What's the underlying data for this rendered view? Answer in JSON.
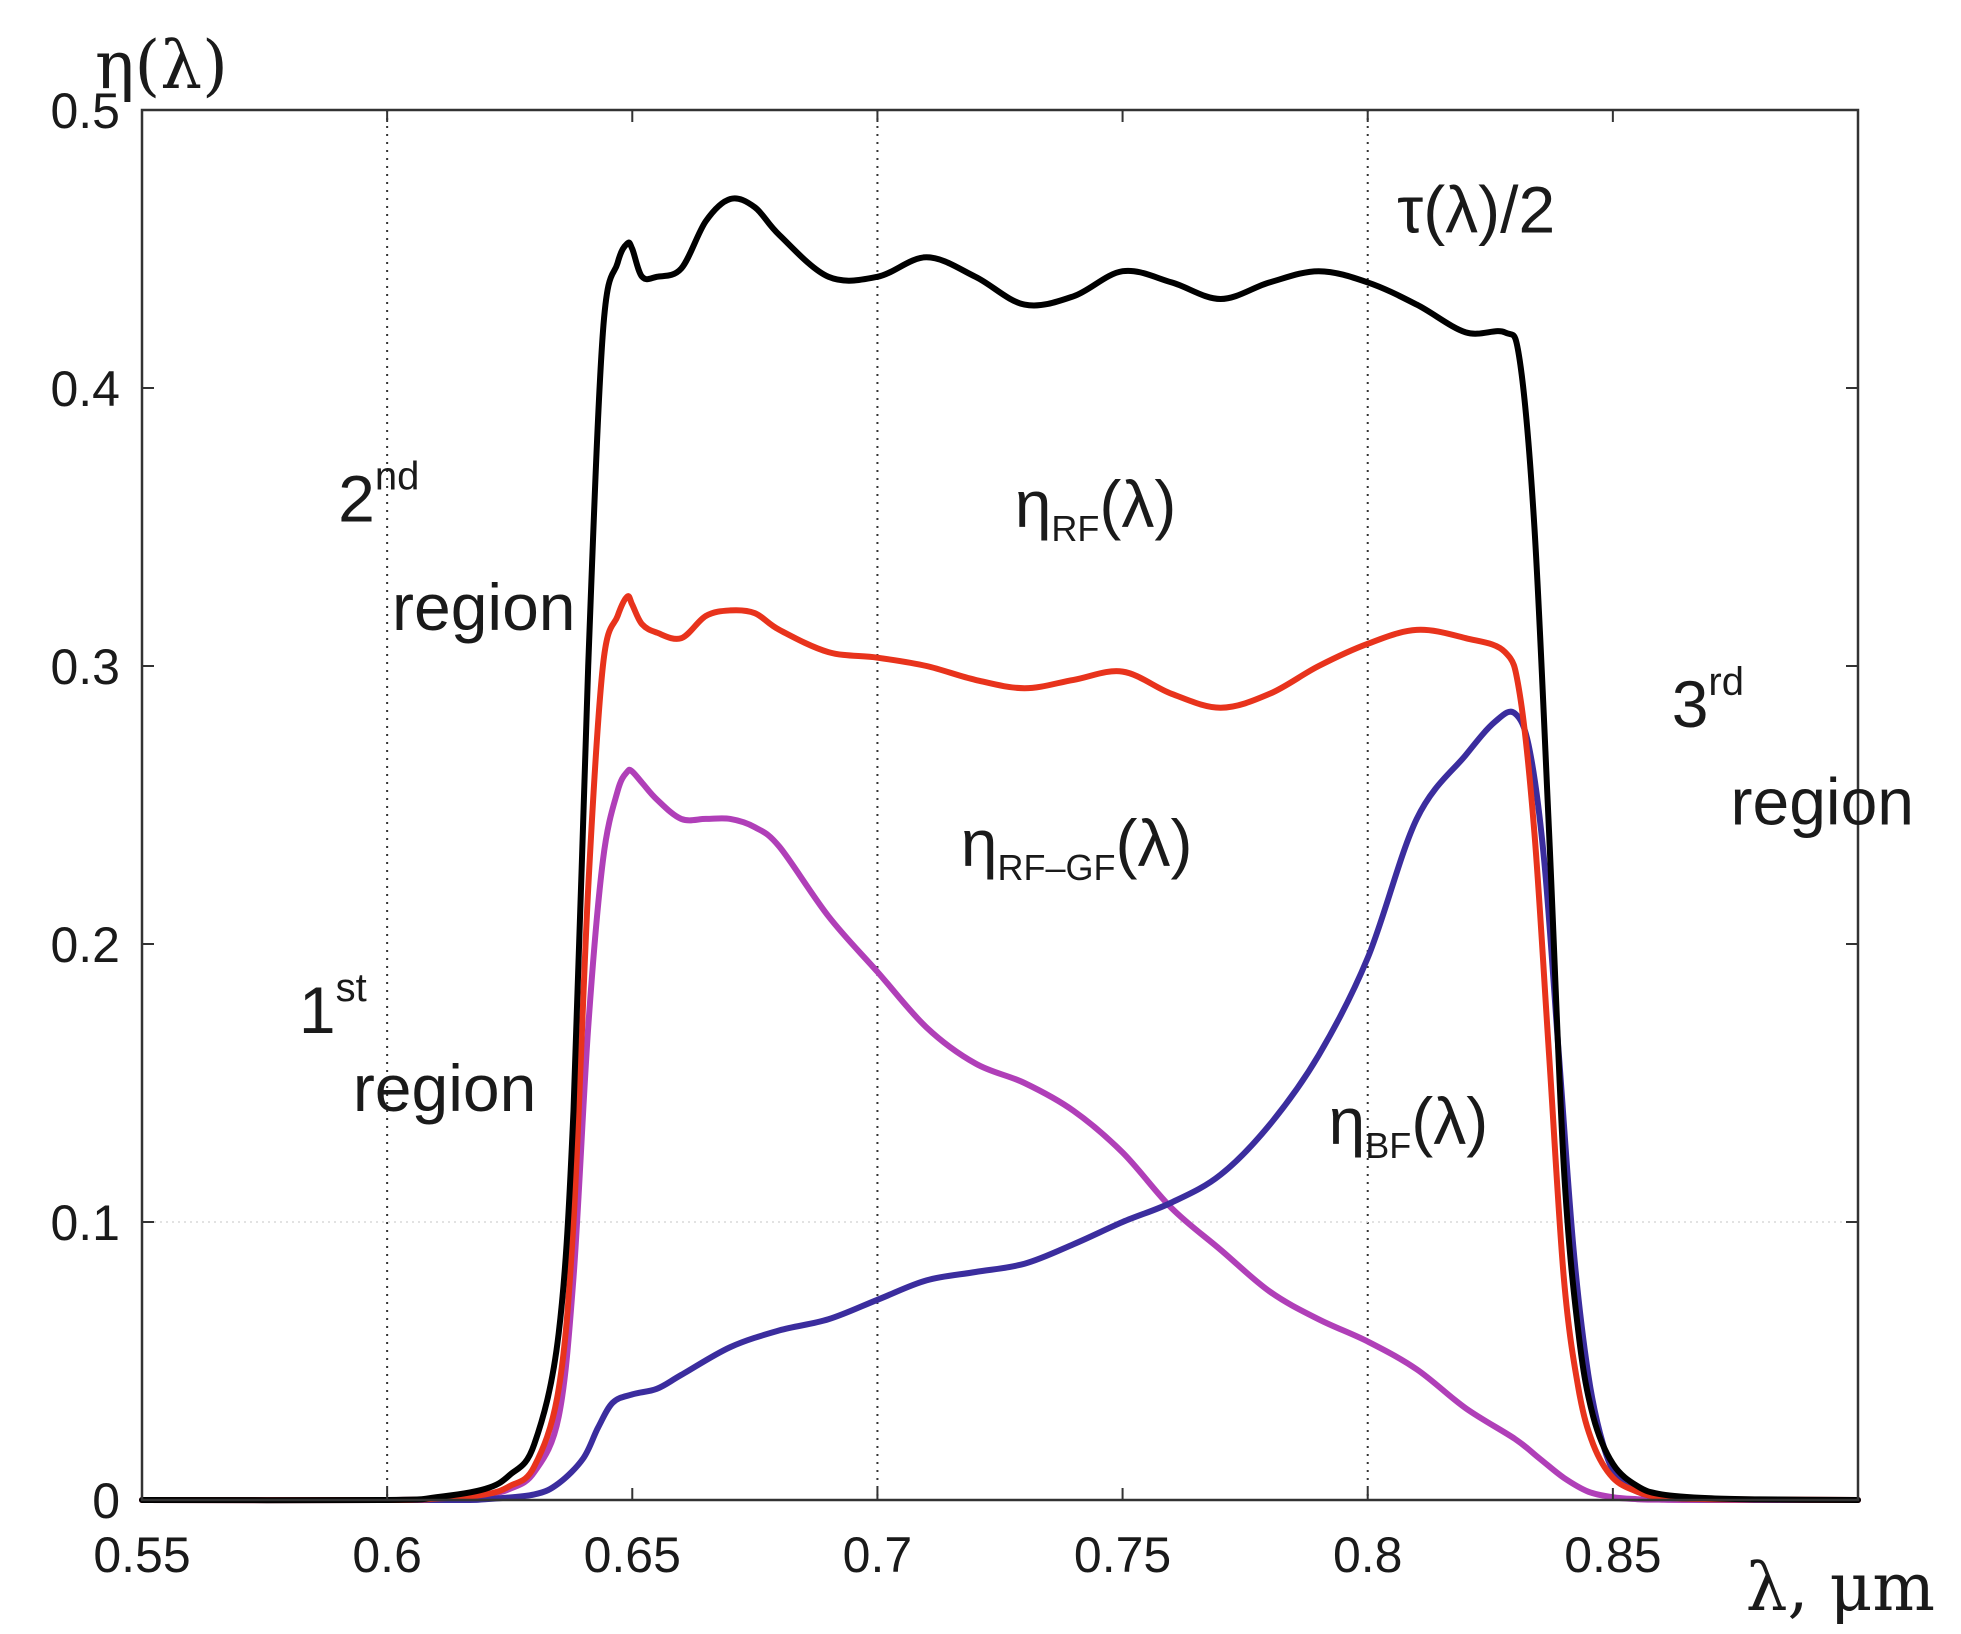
{
  "chart_data": {
    "type": "line",
    "ylabel": "η(λ)",
    "xlabel": "λ, μm",
    "xlim": [
      0.55,
      0.9
    ],
    "ylim": [
      0,
      0.5
    ],
    "x_ticks": [
      0.55,
      0.6,
      0.65,
      0.7,
      0.75,
      0.8,
      0.85
    ],
    "x_tick_labels": [
      "0.55",
      "0.6",
      "0.65",
      "0.7",
      "0.75",
      "0.8",
      "0.85"
    ],
    "y_ticks": [
      0,
      0.1,
      0.2,
      0.3,
      0.4,
      0.5
    ],
    "y_tick_labels": [
      "0",
      "0.1",
      "0.2",
      "0.3",
      "0.4",
      "0.5"
    ],
    "vlines": [
      0.6,
      0.7,
      0.8
    ],
    "hgrid": [
      0.1
    ],
    "series": [
      {
        "name": "τ(λ)/2",
        "color": "#000000",
        "x": [
          0.55,
          0.6,
          0.61,
          0.62,
          0.625,
          0.63,
          0.635,
          0.638,
          0.641,
          0.644,
          0.647,
          0.649,
          0.65,
          0.652,
          0.655,
          0.66,
          0.665,
          0.67,
          0.675,
          0.68,
          0.69,
          0.7,
          0.71,
          0.72,
          0.73,
          0.74,
          0.75,
          0.76,
          0.77,
          0.78,
          0.79,
          0.8,
          0.81,
          0.82,
          0.828,
          0.831,
          0.834,
          0.837,
          0.84,
          0.843,
          0.846,
          0.85,
          0.855,
          0.86,
          0.87,
          0.88,
          0.9
        ],
        "y": [
          0,
          0,
          0.001,
          0.004,
          0.009,
          0.02,
          0.06,
          0.14,
          0.3,
          0.42,
          0.445,
          0.452,
          0.45,
          0.44,
          0.44,
          0.443,
          0.46,
          0.468,
          0.465,
          0.455,
          0.44,
          0.44,
          0.447,
          0.44,
          0.43,
          0.433,
          0.442,
          0.438,
          0.432,
          0.438,
          0.442,
          0.438,
          0.43,
          0.42,
          0.42,
          0.41,
          0.35,
          0.24,
          0.12,
          0.06,
          0.03,
          0.013,
          0.005,
          0.002,
          0.0006,
          0.0002,
          0
        ]
      },
      {
        "name": "η_RF(λ)",
        "color": "#e8331c",
        "x": [
          0.55,
          0.6,
          0.61,
          0.62,
          0.625,
          0.63,
          0.635,
          0.638,
          0.641,
          0.644,
          0.647,
          0.649,
          0.65,
          0.652,
          0.655,
          0.66,
          0.665,
          0.67,
          0.675,
          0.68,
          0.69,
          0.7,
          0.71,
          0.72,
          0.73,
          0.74,
          0.75,
          0.76,
          0.77,
          0.78,
          0.79,
          0.8,
          0.81,
          0.82,
          0.828,
          0.831,
          0.834,
          0.837,
          0.84,
          0.843,
          0.846,
          0.85,
          0.855,
          0.86,
          0.87,
          0.9
        ],
        "y": [
          0,
          0,
          0.0005,
          0.002,
          0.005,
          0.012,
          0.04,
          0.1,
          0.22,
          0.3,
          0.318,
          0.325,
          0.322,
          0.315,
          0.312,
          0.31,
          0.318,
          0.32,
          0.319,
          0.313,
          0.305,
          0.303,
          0.3,
          0.295,
          0.292,
          0.295,
          0.298,
          0.29,
          0.285,
          0.29,
          0.3,
          0.308,
          0.313,
          0.31,
          0.305,
          0.29,
          0.24,
          0.16,
          0.08,
          0.04,
          0.02,
          0.008,
          0.003,
          0.001,
          0.0003,
          0
        ]
      },
      {
        "name": "η_RF–GF(λ)",
        "color": "#b03fb8",
        "x": [
          0.55,
          0.6,
          0.61,
          0.62,
          0.625,
          0.63,
          0.635,
          0.638,
          0.641,
          0.644,
          0.647,
          0.649,
          0.65,
          0.652,
          0.655,
          0.66,
          0.665,
          0.67,
          0.675,
          0.68,
          0.69,
          0.7,
          0.71,
          0.72,
          0.73,
          0.74,
          0.75,
          0.76,
          0.77,
          0.78,
          0.79,
          0.8,
          0.81,
          0.82,
          0.83,
          0.835,
          0.84,
          0.845,
          0.85,
          0.855,
          0.86,
          0.87,
          0.9
        ],
        "y": [
          0,
          0,
          0.0005,
          0.002,
          0.004,
          0.01,
          0.03,
          0.08,
          0.17,
          0.23,
          0.255,
          0.262,
          0.262,
          0.258,
          0.252,
          0.245,
          0.245,
          0.245,
          0.242,
          0.235,
          0.21,
          0.19,
          0.17,
          0.157,
          0.15,
          0.14,
          0.125,
          0.105,
          0.09,
          0.075,
          0.065,
          0.057,
          0.047,
          0.033,
          0.022,
          0.015,
          0.008,
          0.003,
          0.001,
          0.0003,
          0.0001,
          0,
          0
        ]
      },
      {
        "name": "η_BF(λ)",
        "color": "#3b2d9e",
        "x": [
          0.55,
          0.61,
          0.62,
          0.63,
          0.635,
          0.64,
          0.643,
          0.646,
          0.65,
          0.655,
          0.66,
          0.67,
          0.68,
          0.69,
          0.7,
          0.71,
          0.72,
          0.73,
          0.74,
          0.75,
          0.76,
          0.77,
          0.78,
          0.79,
          0.8,
          0.81,
          0.82,
          0.826,
          0.83,
          0.833,
          0.836,
          0.839,
          0.842,
          0.845,
          0.848,
          0.851,
          0.855,
          0.86,
          0.87,
          0.9
        ],
        "y": [
          0,
          0,
          0.0003,
          0.002,
          0.006,
          0.015,
          0.026,
          0.035,
          0.038,
          0.04,
          0.045,
          0.055,
          0.061,
          0.065,
          0.072,
          0.079,
          0.082,
          0.085,
          0.092,
          0.1,
          0.107,
          0.117,
          0.135,
          0.16,
          0.195,
          0.245,
          0.268,
          0.28,
          0.283,
          0.27,
          0.23,
          0.16,
          0.09,
          0.045,
          0.02,
          0.008,
          0.003,
          0.001,
          0.0002,
          0
        ]
      }
    ],
    "annotations": [
      {
        "name": "tau-label",
        "text": "τ(λ)/2",
        "at": [
          0.806,
          0.456
        ]
      },
      {
        "name": "eta-rf-label",
        "text": "η",
        "sub": "RF",
        "tail": "(λ)",
        "at": [
          0.728,
          0.35
        ]
      },
      {
        "name": "eta-rfgf-label",
        "text": "η",
        "sub": "RF–GF",
        "tail": "(λ)",
        "at": [
          0.717,
          0.228
        ]
      },
      {
        "name": "eta-bf-label",
        "text": "η",
        "sub": "BF",
        "tail": "(λ)",
        "at": [
          0.792,
          0.128
        ]
      },
      {
        "name": "region-2-number",
        "text": "2",
        "sup": "nd",
        "at": [
          0.59,
          0.352
        ]
      },
      {
        "name": "region-2-word",
        "text": "region",
        "at": [
          0.601,
          0.313
        ]
      },
      {
        "name": "region-1-number",
        "text": "1",
        "sup": "st",
        "at": [
          0.582,
          0.168
        ]
      },
      {
        "name": "region-1-word",
        "text": "region",
        "at": [
          0.593,
          0.14
        ]
      },
      {
        "name": "region-3-number",
        "text": "3",
        "sup": "rd",
        "at": [
          0.862,
          0.278
        ]
      },
      {
        "name": "region-3-word",
        "text": "region",
        "at": [
          0.874,
          0.243
        ]
      }
    ]
  }
}
